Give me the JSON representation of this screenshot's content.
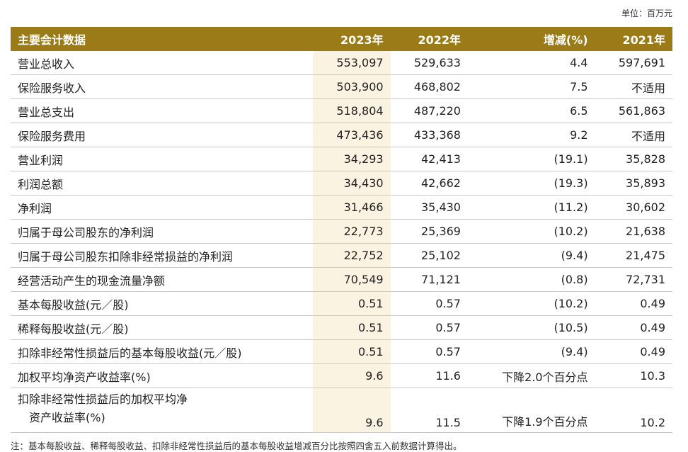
{
  "unit": "单位：百万元",
  "table": {
    "header": [
      "主要会计数据",
      "2023年",
      "2022年",
      "增减(%)",
      "2021年"
    ],
    "rows": [
      [
        [
          "营业总收入"
        ],
        "553,097",
        "529,633",
        "4.4",
        "597,691"
      ],
      [
        [
          "保险服务收入"
        ],
        "503,900",
        "468,802",
        "7.5",
        "不适用"
      ],
      [
        [
          "营业总支出"
        ],
        "518,804",
        "487,220",
        "6.5",
        "561,863"
      ],
      [
        [
          "保险服务费用"
        ],
        "473,436",
        "433,368",
        "9.2",
        "不适用"
      ],
      [
        [
          "营业利润"
        ],
        "34,293",
        "42,413",
        "(19.1)",
        "35,828"
      ],
      [
        [
          "利润总额"
        ],
        "34,430",
        "42,662",
        "(19.3)",
        "35,893"
      ],
      [
        [
          "净利润"
        ],
        "31,466",
        "35,430",
        "(11.2)",
        "30,602"
      ],
      [
        [
          "归属于母公司股东的净利润"
        ],
        "22,773",
        "25,369",
        "(10.2)",
        "21,638"
      ],
      [
        [
          "归属于母公司股东扣除非经常损益的净利润"
        ],
        "22,752",
        "25,102",
        "(9.4)",
        "21,475"
      ],
      [
        [
          "经营活动产生的现金流量净额"
        ],
        "70,549",
        "71,121",
        "(0.8)",
        "72,731"
      ],
      [
        [
          "基本每股收益(元／股)"
        ],
        "0.51",
        "0.57",
        "(10.2)",
        "0.49"
      ],
      [
        [
          "稀释每股收益(元／股)"
        ],
        "0.51",
        "0.57",
        "(10.5)",
        "0.49"
      ],
      [
        [
          "扣除非经常性损益后的基本每股收益(元／股)"
        ],
        "0.51",
        "0.57",
        "(9.4)",
        "0.49"
      ],
      [
        [
          "加权平均净资产收益率(%)"
        ],
        "9.6",
        "11.6",
        "下降2.0个百分点",
        "10.3"
      ],
      [
        [
          "扣除非经常性损益后的加权平均净",
          "资产收益率(%)"
        ],
        "9.6",
        "11.5",
        "下降1.9个百分点",
        "10.2"
      ]
    ]
  },
  "note": "注：基本每股收益、稀释每股收益、扣除非经常性损益后的基本每股收益增减百分比按照四舍五入前数据计算得出。"
}
